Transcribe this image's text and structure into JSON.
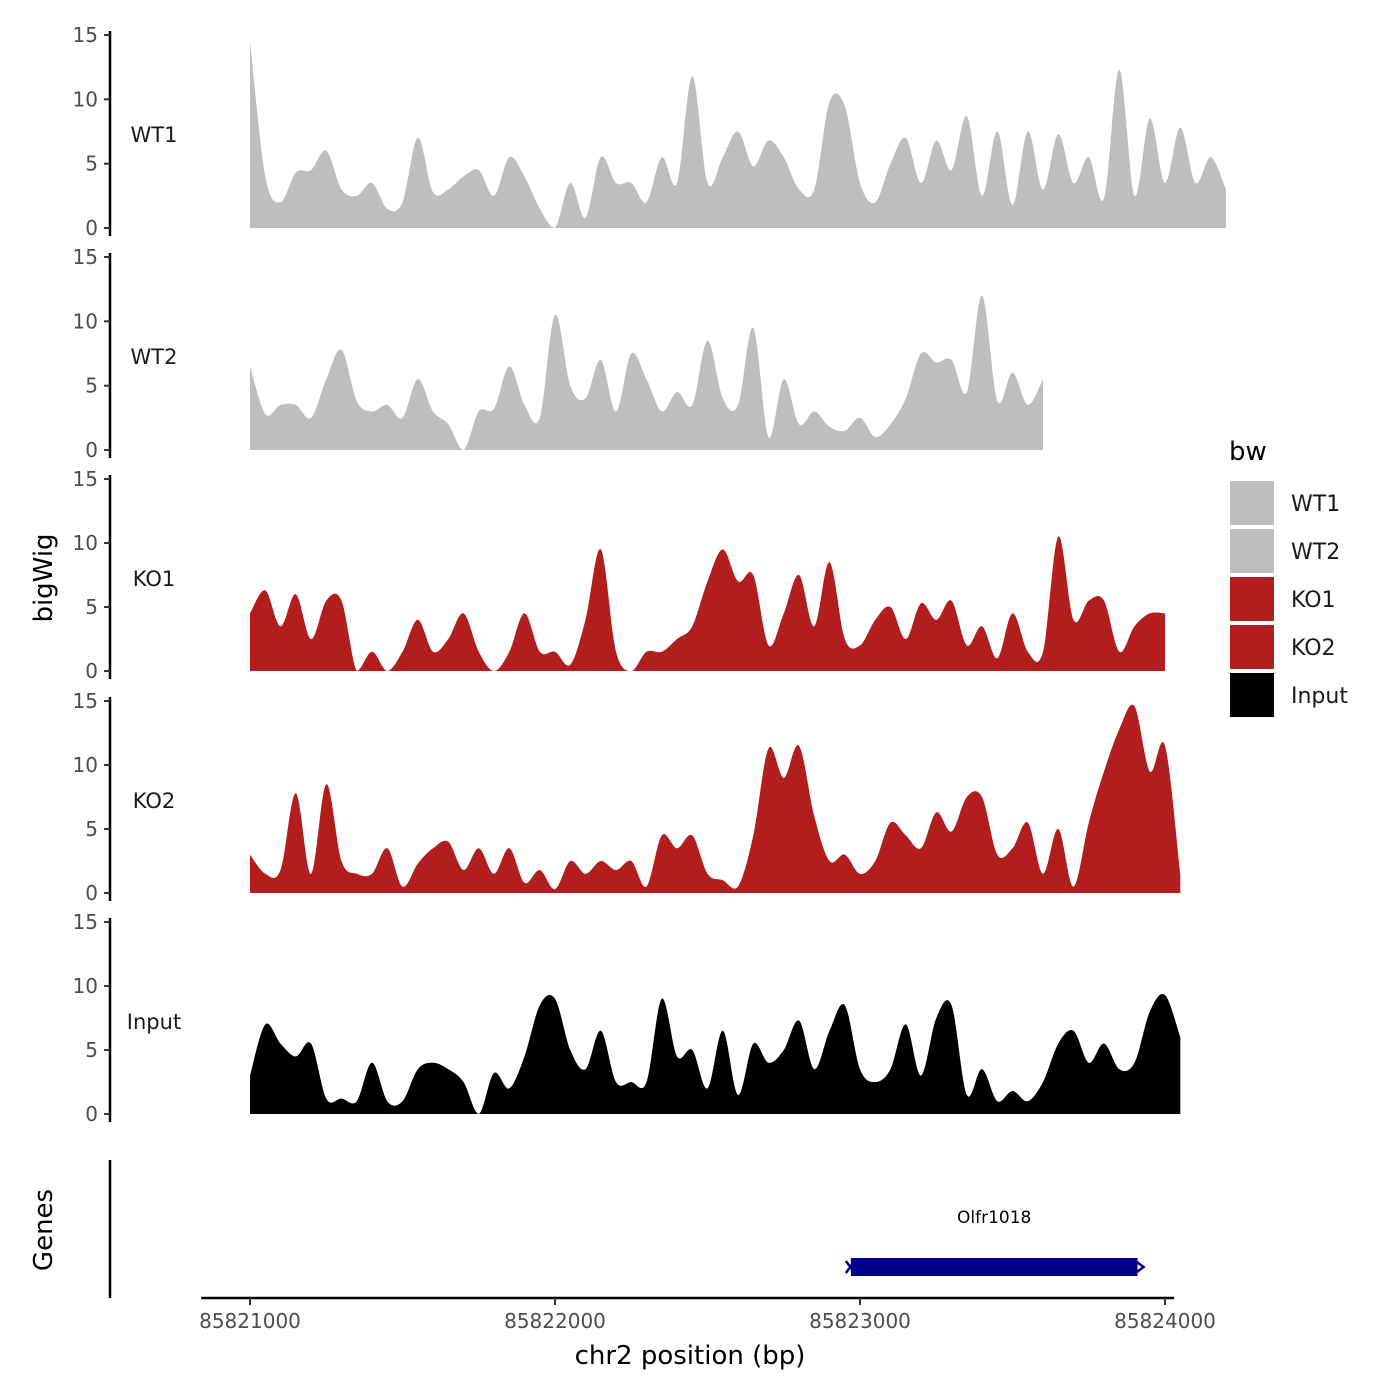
{
  "chart_data": {
    "type": "area",
    "title": "",
    "xlabel": "chr2 position (bp)",
    "ylabel": "bigWig",
    "genes_label": "Genes",
    "xlim": [
      85820840,
      85824030
    ],
    "ylim": [
      0,
      15
    ],
    "x_ticks": [
      85821000,
      85822000,
      85823000,
      85824000
    ],
    "x_tick_labels": [
      "85821000",
      "85822000",
      "85823000",
      "85824000"
    ],
    "y_ticks": [
      0,
      5,
      10,
      15
    ],
    "y_tick_labels": [
      "0",
      "5",
      "10",
      "15"
    ],
    "legend": {
      "title": "bw",
      "position": "right",
      "entries": [
        {
          "label": "WT1",
          "color": "#bebebe"
        },
        {
          "label": "WT2",
          "color": "#bebebe"
        },
        {
          "label": "KO1",
          "color": "#b21e1e"
        },
        {
          "label": "KO2",
          "color": "#b21e1e"
        },
        {
          "label": "Input",
          "color": "#000000"
        }
      ]
    },
    "x_sample_start": 85821000,
    "x_sample_step": 50,
    "series": [
      {
        "name": "WT1",
        "color": "#bebebe",
        "values": [
          14.5,
          4.0,
          2.0,
          4.3,
          4.5,
          6.0,
          3.0,
          2.5,
          3.5,
          1.5,
          2.0,
          7.0,
          2.8,
          3.0,
          4.0,
          4.5,
          2.5,
          5.5,
          4.0,
          1.5,
          0.0,
          3.5,
          0.8,
          5.5,
          3.5,
          3.5,
          2.0,
          5.5,
          3.5,
          11.8,
          3.5,
          5.5,
          7.5,
          4.8,
          6.8,
          5.5,
          3.0,
          3.0,
          9.8,
          9.5,
          3.5,
          2.0,
          5.0,
          7.0,
          3.5,
          6.8,
          4.5,
          8.7,
          2.5,
          7.5,
          1.8,
          7.5,
          3.0,
          7.3,
          3.5,
          5.5,
          2.3,
          12.3,
          2.5,
          8.5,
          3.5,
          7.8,
          3.5,
          5.5,
          3.0
        ]
      },
      {
        "name": "WT2",
        "color": "#bebebe",
        "values": [
          6.5,
          2.8,
          3.5,
          3.5,
          2.5,
          5.5,
          7.8,
          3.8,
          3.0,
          3.5,
          2.5,
          5.5,
          3.0,
          2.0,
          0.0,
          3.0,
          3.2,
          6.5,
          3.5,
          2.5,
          10.5,
          5.0,
          4.0,
          7.0,
          3.0,
          7.5,
          5.5,
          3.0,
          4.5,
          3.5,
          8.5,
          4.0,
          3.5,
          9.5,
          1.0,
          5.5,
          2.0,
          3.0,
          1.8,
          1.5,
          2.5,
          1.0,
          2.0,
          4.0,
          7.5,
          6.8,
          7.0,
          4.5,
          12.0,
          3.8,
          6.0,
          3.5,
          5.5
        ]
      },
      {
        "name": "KO1",
        "color": "#b21e1e",
        "values": [
          4.5,
          6.3,
          3.5,
          6.0,
          2.5,
          5.5,
          5.5,
          0.0,
          1.5,
          0.0,
          1.5,
          4.0,
          1.5,
          2.5,
          4.5,
          1.5,
          0.0,
          1.5,
          4.5,
          1.5,
          1.5,
          0.5,
          4.0,
          9.5,
          1.5,
          0.0,
          1.5,
          1.5,
          2.5,
          3.5,
          7.0,
          9.5,
          7.0,
          7.5,
          2.0,
          4.5,
          7.5,
          3.5,
          8.5,
          2.5,
          2.0,
          4.0,
          5.0,
          2.5,
          5.3,
          4.0,
          5.5,
          2.0,
          3.5,
          1.0,
          4.5,
          1.5,
          1.5,
          10.5,
          4.0,
          5.5,
          5.5,
          1.5,
          3.5,
          4.5,
          4.5
        ]
      },
      {
        "name": "KO2",
        "color": "#b21e1e",
        "values": [
          3.0,
          1.5,
          1.8,
          7.8,
          1.5,
          8.5,
          2.5,
          1.5,
          1.5,
          3.5,
          0.5,
          2.3,
          3.5,
          4.0,
          1.8,
          3.5,
          1.5,
          3.5,
          0.8,
          1.8,
          0.3,
          2.5,
          1.5,
          2.5,
          1.8,
          2.5,
          0.5,
          4.5,
          3.5,
          4.5,
          1.5,
          1.0,
          0.5,
          4.5,
          11.3,
          9.0,
          11.5,
          6.0,
          2.5,
          3.0,
          1.5,
          2.5,
          5.5,
          4.5,
          3.5,
          6.3,
          4.8,
          7.5,
          7.5,
          3.0,
          3.5,
          5.5,
          1.5,
          5.0,
          0.5,
          5.5,
          9.5,
          12.8,
          14.6,
          9.5,
          11.5,
          1.5
        ]
      },
      {
        "name": "Input",
        "color": "#000000",
        "values": [
          3.0,
          7.0,
          5.5,
          4.5,
          5.5,
          1.2,
          1.2,
          1.0,
          4.0,
          1.0,
          1.0,
          3.5,
          4.0,
          3.5,
          2.5,
          0.0,
          3.2,
          2.0,
          4.5,
          8.5,
          9.0,
          5.0,
          3.5,
          6.5,
          2.5,
          2.5,
          2.5,
          9.0,
          4.5,
          5.0,
          2.0,
          6.5,
          1.5,
          5.5,
          4.0,
          5.0,
          7.3,
          3.5,
          6.5,
          8.5,
          3.5,
          2.5,
          3.5,
          7.0,
          3.0,
          7.5,
          8.5,
          1.5,
          3.5,
          1.0,
          1.8,
          1.0,
          2.5,
          5.5,
          6.5,
          4.0,
          5.5,
          3.5,
          4.0,
          8.0,
          9.3,
          6.0
        ]
      }
    ],
    "genes": [
      {
        "name": "Olfr1018",
        "start": 85822970,
        "end": 85823910,
        "strand": "-",
        "color": "#00008b"
      }
    ]
  }
}
